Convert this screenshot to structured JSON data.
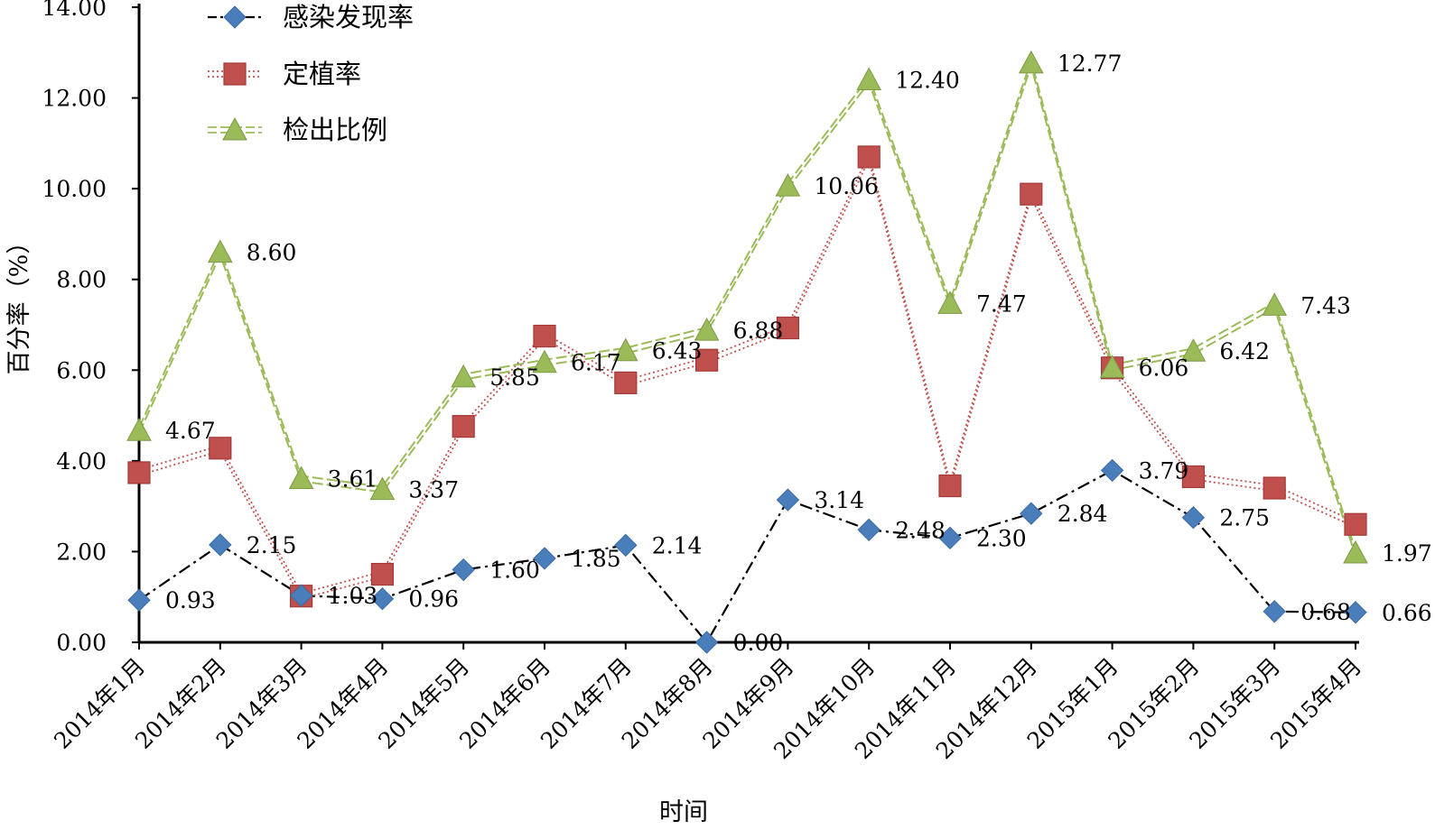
{
  "chart_data": {
    "type": "line",
    "xlabel": "时间",
    "ylabel": "百分率（%）",
    "ylim": [
      0,
      14
    ],
    "yticks": [
      "0.00",
      "2.00",
      "4.00",
      "6.00",
      "8.00",
      "10.00",
      "12.00",
      "14.00"
    ],
    "categories": [
      "2014年1月",
      "2014年2月",
      "2014年3月",
      "2014年4月",
      "2014年5月",
      "2014年6月",
      "2014年7月",
      "2014年8月",
      "2014年9月",
      "2014年10月",
      "2014年11月",
      "2014年12月",
      "2015年1月",
      "2015年2月",
      "2015年3月",
      "2015年4月"
    ],
    "legend_position": "top-left",
    "grid": false,
    "series": [
      {
        "name": "感染发现率",
        "color": "#4a7ebb",
        "line_color": "#000000",
        "marker": "diamond",
        "line_style": "dash-dot",
        "values": [
          0.93,
          2.15,
          1.03,
          0.96,
          1.6,
          1.85,
          2.14,
          0.0,
          3.14,
          2.48,
          2.3,
          2.84,
          3.79,
          2.75,
          0.68,
          0.66
        ],
        "labels": [
          "0.93",
          "2.15",
          "1.03",
          "0.96",
          "1.60",
          "1.85",
          "2.14",
          "0.00",
          "3.14",
          "2.48",
          "2.30",
          "2.84",
          "3.79",
          "2.75",
          "0.68",
          "0.66"
        ]
      },
      {
        "name": "定植率",
        "color": "#c0504d",
        "line_color": "#c0504d",
        "marker": "square",
        "line_style": "dotted-double",
        "values": [
          3.74,
          4.28,
          1.02,
          1.5,
          4.76,
          6.75,
          5.72,
          6.22,
          6.93,
          10.7,
          3.45,
          9.88,
          6.05,
          3.65,
          3.4,
          2.6
        ],
        "labels": []
      },
      {
        "name": "检出比例",
        "color": "#9bbb59",
        "line_color": "#9bbb59",
        "marker": "triangle",
        "line_style": "dashed-double",
        "values": [
          4.67,
          8.6,
          3.61,
          3.37,
          5.85,
          6.17,
          6.43,
          6.88,
          10.06,
          12.4,
          7.47,
          12.77,
          6.06,
          6.42,
          7.43,
          1.97
        ],
        "labels": [
          "4.67",
          "8.60",
          "3.61",
          "3.37",
          "5.85",
          "6.17",
          "6.43",
          "6.88",
          "10.06",
          "12.40",
          "7.47",
          "12.77",
          "6.06",
          "6.42",
          "7.43",
          "1.97"
        ]
      }
    ]
  }
}
